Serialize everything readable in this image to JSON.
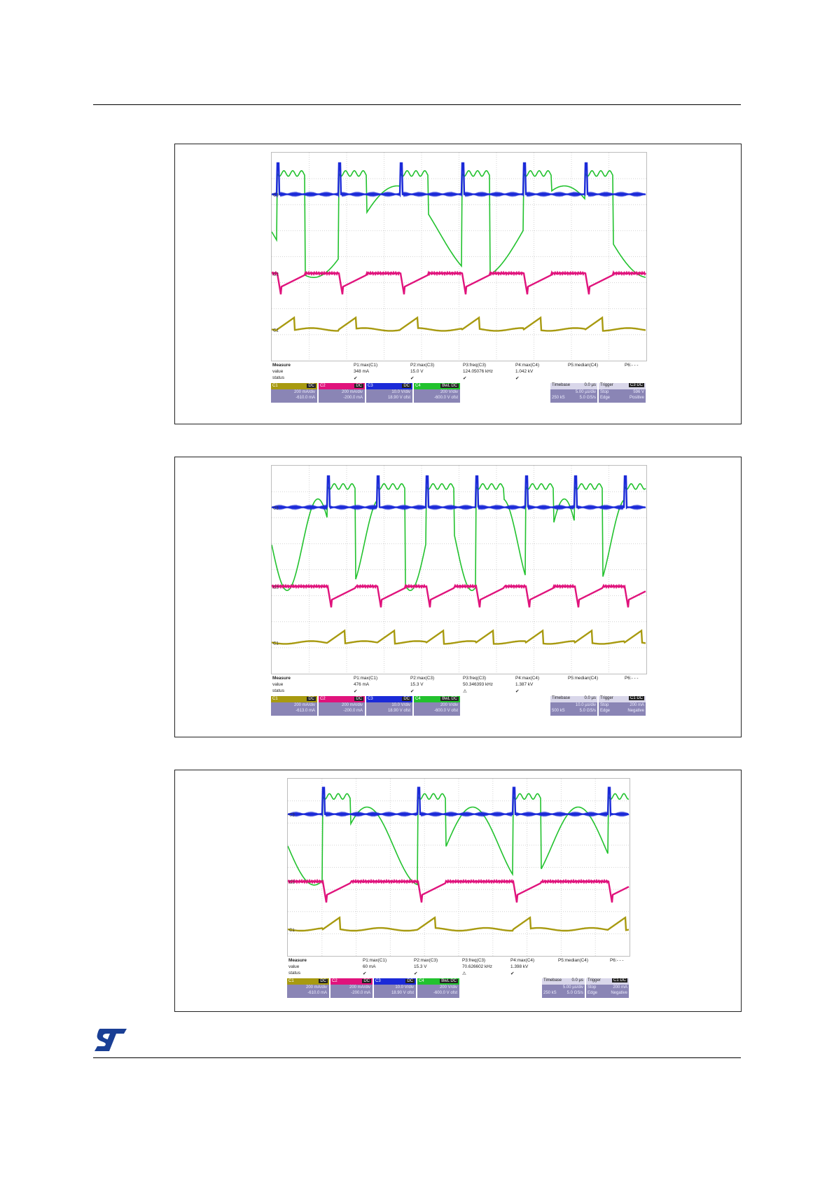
{
  "figures": [
    {
      "measure": {
        "title": "Measure",
        "row_value": "value",
        "row_status": "status",
        "params": [
          {
            "label": "P1:max(C1)",
            "value": "348 mA",
            "status": "✔"
          },
          {
            "label": "P2:max(C3)",
            "value": "15.0 V",
            "status": "✔"
          },
          {
            "label": "P3:freq(C3)",
            "value": "124.05076 kHz",
            "status": "✔"
          },
          {
            "label": "P4:max(C4)",
            "value": "1.042 kV",
            "status": "✔"
          },
          {
            "label": "P5:median(C4)",
            "value": "",
            "status": ""
          },
          {
            "label": "P6:- - -",
            "value": "",
            "status": ""
          }
        ]
      },
      "channels": [
        {
          "tag": "C1",
          "coupling": "DC",
          "line1": "200 mA/div",
          "line2": "-610.0 mA",
          "color": "#a89a10"
        },
        {
          "tag": "C2",
          "coupling": "DC",
          "line1": "200 mA/div",
          "line2": "-200.0 mA",
          "color": "#e0137c"
        },
        {
          "tag": "C3",
          "coupling": "DC",
          "line1": "10.0 V/div",
          "line2": "18.90 V ofst",
          "color": "#1b2ad8"
        },
        {
          "tag": "C4",
          "coupling": "BwL DC",
          "line1": "200 V/div",
          "line2": "-600.0 V ofst",
          "color": "#22c22e"
        }
      ],
      "timebase": {
        "title": "Timebase",
        "delay": "0.0 µs",
        "div": "5.00 µs/div",
        "samples": "250 kS",
        "rate": "5.0 GS/s"
      },
      "trigger": {
        "title": "Trigger",
        "coupling": "C3 DC",
        "mode": "Stop",
        "level": "596 V",
        "type": "Edge",
        "slope": "Positive"
      }
    },
    {
      "measure": {
        "title": "Measure",
        "row_value": "value",
        "row_status": "status",
        "params": [
          {
            "label": "P1:max(C1)",
            "value": "476 mA",
            "status": "✔"
          },
          {
            "label": "P2:max(C3)",
            "value": "15.3 V",
            "status": "✔"
          },
          {
            "label": "P3:freq(C3)",
            "value": "50.346393 kHz",
            "status": "⚠"
          },
          {
            "label": "P4:max(C4)",
            "value": "1.387 kV",
            "status": "✔"
          },
          {
            "label": "P5:median(C4)",
            "value": "",
            "status": ""
          },
          {
            "label": "P6:- - -",
            "value": "",
            "status": ""
          }
        ]
      },
      "channels": [
        {
          "tag": "C1",
          "coupling": "DC",
          "line1": "200 mA/div",
          "line2": "-613.0 mA",
          "color": "#a89a10"
        },
        {
          "tag": "C2",
          "coupling": "DC",
          "line1": "200 mA/div",
          "line2": "-200.0 mA",
          "color": "#e0137c"
        },
        {
          "tag": "C3",
          "coupling": "DC",
          "line1": "10.0 V/div",
          "line2": "18.90 V ofst",
          "color": "#1b2ad8"
        },
        {
          "tag": "C4",
          "coupling": "BwL DC",
          "line1": "200 V/div",
          "line2": "-600.0 V ofst",
          "color": "#22c22e"
        }
      ],
      "timebase": {
        "title": "Timebase",
        "delay": "0.0 µs",
        "div": "10.0 µs/div",
        "samples": "500 kS",
        "rate": "5.0 GS/s"
      },
      "trigger": {
        "title": "Trigger",
        "coupling": "C1 DC",
        "mode": "Stop",
        "level": "200 mA",
        "type": "Edge",
        "slope": "Negative"
      }
    },
    {
      "measure": {
        "title": "Measure",
        "row_value": "value",
        "row_status": "status",
        "params": [
          {
            "label": "P1:max(C1)",
            "value": "60 mA",
            "status": "✔"
          },
          {
            "label": "P2:max(C3)",
            "value": "15.3 V",
            "status": "✔"
          },
          {
            "label": "P3:freq(C3)",
            "value": "70.626602 kHz",
            "status": "⚠"
          },
          {
            "label": "P4:max(C4)",
            "value": "1.398 kV",
            "status": "✔"
          },
          {
            "label": "P5:median(C4)",
            "value": "",
            "status": ""
          },
          {
            "label": "P6:- - -",
            "value": "",
            "status": ""
          }
        ]
      },
      "channels": [
        {
          "tag": "C1",
          "coupling": "DC",
          "line1": "200 mA/div",
          "line2": "-610.0 mA",
          "color": "#a89a10"
        },
        {
          "tag": "C2",
          "coupling": "DC",
          "line1": "200 mA/div",
          "line2": "-200.0 mA",
          "color": "#e0137c"
        },
        {
          "tag": "C3",
          "coupling": "DC",
          "line1": "10.0 V/div",
          "line2": "18.90 V ofst",
          "color": "#1b2ad8"
        },
        {
          "tag": "C4",
          "coupling": "BwL DC",
          "line1": "200 V/div",
          "line2": "-600.0 V ofst",
          "color": "#22c22e"
        }
      ],
      "timebase": {
        "title": "Timebase",
        "delay": "0.0 µs",
        "div": "5.00 µs/div",
        "samples": "250 kS",
        "rate": "5.0 GS/s"
      },
      "trigger": {
        "title": "Trigger",
        "coupling": "C1 DC",
        "mode": "Stop",
        "level": "200 mA",
        "type": "Edge",
        "slope": "Negative"
      }
    }
  ],
  "logo": {
    "icon": "st-logo-icon",
    "color": "#1a3f95"
  }
}
